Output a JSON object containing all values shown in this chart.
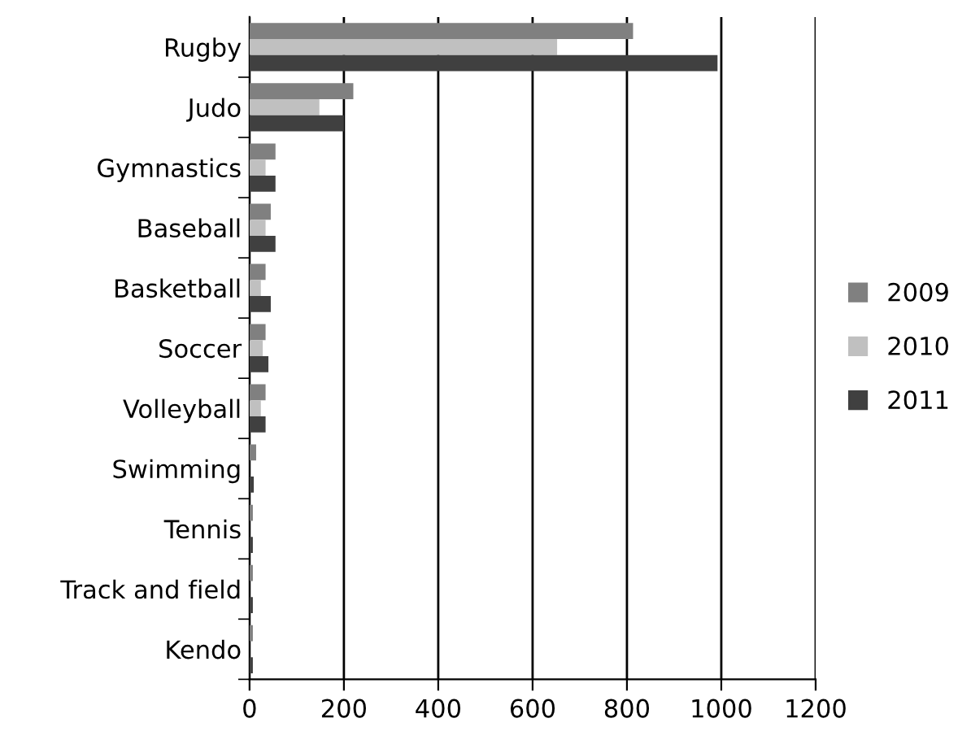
{
  "chart_data": {
    "type": "bar",
    "orientation": "horizontal",
    "categories": [
      "Rugby",
      "Judo",
      "Gymnastics",
      "Baseball",
      "Basketball",
      "Soccer",
      "Volleyball",
      "Swimming",
      "Tennis",
      "Track and field",
      "Kendo"
    ],
    "series": [
      {
        "name": "2009",
        "color": "#808080",
        "values": [
          813,
          220,
          55,
          45,
          34,
          34,
          34,
          14,
          7,
          7,
          7
        ]
      },
      {
        "name": "2010",
        "color": "#c0c0c0",
        "values": [
          652,
          148,
          34,
          34,
          24,
          28,
          24,
          null,
          null,
          null,
          null
        ]
      },
      {
        "name": "2011",
        "color": "#404040",
        "values": [
          992,
          200,
          55,
          55,
          45,
          40,
          34,
          9,
          7,
          7,
          7
        ]
      }
    ],
    "xlim": [
      0,
      1200
    ],
    "xticks": [
      0,
      200,
      400,
      600,
      800,
      1000,
      1200
    ],
    "grid": "x",
    "legend": "right"
  }
}
